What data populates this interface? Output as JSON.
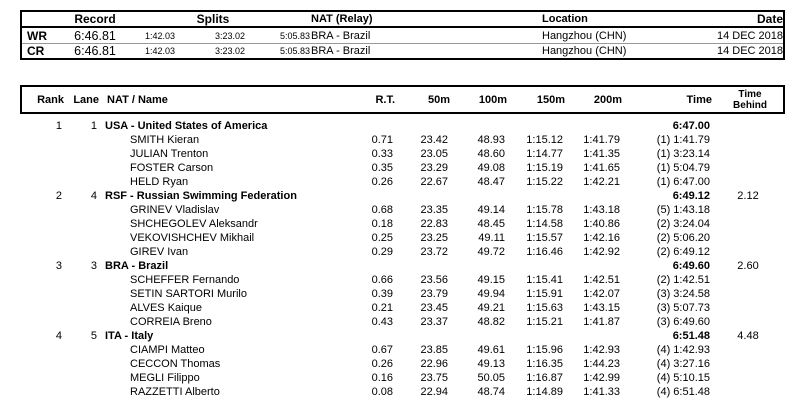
{
  "records_table": {
    "headers": {
      "record": "Record",
      "splits": "Splits",
      "nat": "NAT (Relay)",
      "location": "Location",
      "date": "Date"
    },
    "rows": [
      {
        "label": "WR",
        "record": "6:46.81",
        "splits": [
          "1:42.03",
          "3:23.02",
          "5:05.83"
        ],
        "nat": "BRA - Brazil",
        "location": "Hangzhou (CHN)",
        "date": "14 DEC 2018"
      },
      {
        "label": "CR",
        "record": "6:46.81",
        "splits": [
          "1:42.03",
          "3:23.02",
          "5:05.83"
        ],
        "nat": "BRA - Brazil",
        "location": "Hangzhou (CHN)",
        "date": "14 DEC 2018"
      }
    ]
  },
  "results_table": {
    "headers": {
      "rank": "Rank",
      "lane": "Lane",
      "nat_name": "NAT / Name",
      "rt": "R.T.",
      "m50": "50m",
      "m100": "100m",
      "m150": "150m",
      "m200": "200m",
      "time": "Time",
      "time_behind": "Time Behind"
    },
    "teams": [
      {
        "rank": "1",
        "lane": "1",
        "name": "USA - United States of America",
        "time": "6:47.00",
        "time_behind": "",
        "swimmers": [
          {
            "name": "SMITH Kieran",
            "rt": "0.71",
            "m50": "23.42",
            "m100": "48.93",
            "m150": "1:15.12",
            "m200": "1:41.79",
            "time": "(1) 1:41.79"
          },
          {
            "name": "JULIAN Trenton",
            "rt": "0.33",
            "m50": "23.05",
            "m100": "48.60",
            "m150": "1:14.77",
            "m200": "1:41.35",
            "time": "(1) 3:23.14"
          },
          {
            "name": "FOSTER Carson",
            "rt": "0.35",
            "m50": "23.29",
            "m100": "49.08",
            "m150": "1:15.19",
            "m200": "1:41.65",
            "time": "(1) 5:04.79"
          },
          {
            "name": "HELD Ryan",
            "rt": "0.26",
            "m50": "22.67",
            "m100": "48.47",
            "m150": "1:15.22",
            "m200": "1:42.21",
            "time": "(1) 6:47.00"
          }
        ]
      },
      {
        "rank": "2",
        "lane": "4",
        "name": "RSF - Russian Swimming Federation",
        "time": "6:49.12",
        "time_behind": "2.12",
        "swimmers": [
          {
            "name": "GRINEV Vladislav",
            "rt": "0.68",
            "m50": "23.35",
            "m100": "49.14",
            "m150": "1:15.78",
            "m200": "1:43.18",
            "time": "(5) 1:43.18"
          },
          {
            "name": "SHCHEGOLEV Aleksandr",
            "rt": "0.18",
            "m50": "22.83",
            "m100": "48.45",
            "m150": "1:14.58",
            "m200": "1:40.86",
            "time": "(2) 3:24.04"
          },
          {
            "name": "VEKOVISHCHEV Mikhail",
            "rt": "0.25",
            "m50": "23.25",
            "m100": "49.11",
            "m150": "1:15.57",
            "m200": "1:42.16",
            "time": "(2) 5:06.20"
          },
          {
            "name": "GIREV Ivan",
            "rt": "0.29",
            "m50": "23.72",
            "m100": "49.72",
            "m150": "1:16.46",
            "m200": "1:42.92",
            "time": "(2) 6:49.12"
          }
        ]
      },
      {
        "rank": "3",
        "lane": "3",
        "name": "BRA - Brazil",
        "time": "6:49.60",
        "time_behind": "2.60",
        "swimmers": [
          {
            "name": "SCHEFFER Fernando",
            "rt": "0.66",
            "m50": "23.56",
            "m100": "49.15",
            "m150": "1:15.41",
            "m200": "1:42.51",
            "time": "(2) 1:42.51"
          },
          {
            "name": "SETIN SARTORI Murilo",
            "rt": "0.39",
            "m50": "23.79",
            "m100": "49.94",
            "m150": "1:15.91",
            "m200": "1:42.07",
            "time": "(3) 3:24.58"
          },
          {
            "name": "ALVES Kaique",
            "rt": "0.21",
            "m50": "23.45",
            "m100": "49.21",
            "m150": "1:15.63",
            "m200": "1:43.15",
            "time": "(3) 5:07.73"
          },
          {
            "name": "CORREIA Breno",
            "rt": "0.43",
            "m50": "23.37",
            "m100": "48.82",
            "m150": "1:15.21",
            "m200": "1:41.87",
            "time": "(3) 6:49.60"
          }
        ]
      },
      {
        "rank": "4",
        "lane": "5",
        "name": "ITA - Italy",
        "time": "6:51.48",
        "time_behind": "4.48",
        "swimmers": [
          {
            "name": "CIAMPI Matteo",
            "rt": "0.67",
            "m50": "23.85",
            "m100": "49.61",
            "m150": "1:15.96",
            "m200": "1:42.93",
            "time": "(4) 1:42.93"
          },
          {
            "name": "CECCON Thomas",
            "rt": "0.26",
            "m50": "22.96",
            "m100": "49.13",
            "m150": "1:16.35",
            "m200": "1:44.23",
            "time": "(4) 3:27.16"
          },
          {
            "name": "MEGLI Filippo",
            "rt": "0.16",
            "m50": "23.75",
            "m100": "50.05",
            "m150": "1:16.87",
            "m200": "1:42.99",
            "time": "(4) 5:10.15"
          },
          {
            "name": "RAZZETTI Alberto",
            "rt": "0.08",
            "m50": "22.94",
            "m100": "48.74",
            "m150": "1:14.89",
            "m200": "1:41.33",
            "time": "(4) 6:51.48"
          }
        ]
      }
    ]
  }
}
